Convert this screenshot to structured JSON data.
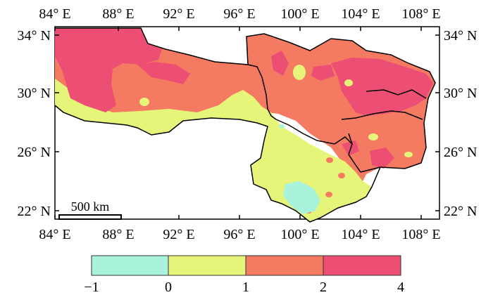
{
  "map": {
    "x_ticks": [
      "84° E",
      "88° E",
      "92° E",
      "96° E",
      "100° E",
      "104° E",
      "108° E"
    ],
    "y_ticks": [
      "34° N",
      "30° N",
      "26° N",
      "22° N"
    ],
    "scale_bar_label": "500 km",
    "colors": {
      "c_neg1_0": "#a9f3dc",
      "c_0_1": "#e6f57a",
      "c_1_2": "#f47a62",
      "c_2_4": "#ec4f73",
      "boundary": "#000000",
      "background": "#ffffff"
    }
  },
  "legend": {
    "labels": [
      "−1",
      "0",
      "1",
      "2",
      "4"
    ],
    "bins": [
      {
        "from": -1,
        "to": 0,
        "color_key": "c_neg1_0"
      },
      {
        "from": 0,
        "to": 1,
        "color_key": "c_0_1"
      },
      {
        "from": 1,
        "to": 2,
        "color_key": "c_1_2"
      },
      {
        "from": 2,
        "to": 4,
        "color_key": "c_2_4"
      }
    ]
  }
}
